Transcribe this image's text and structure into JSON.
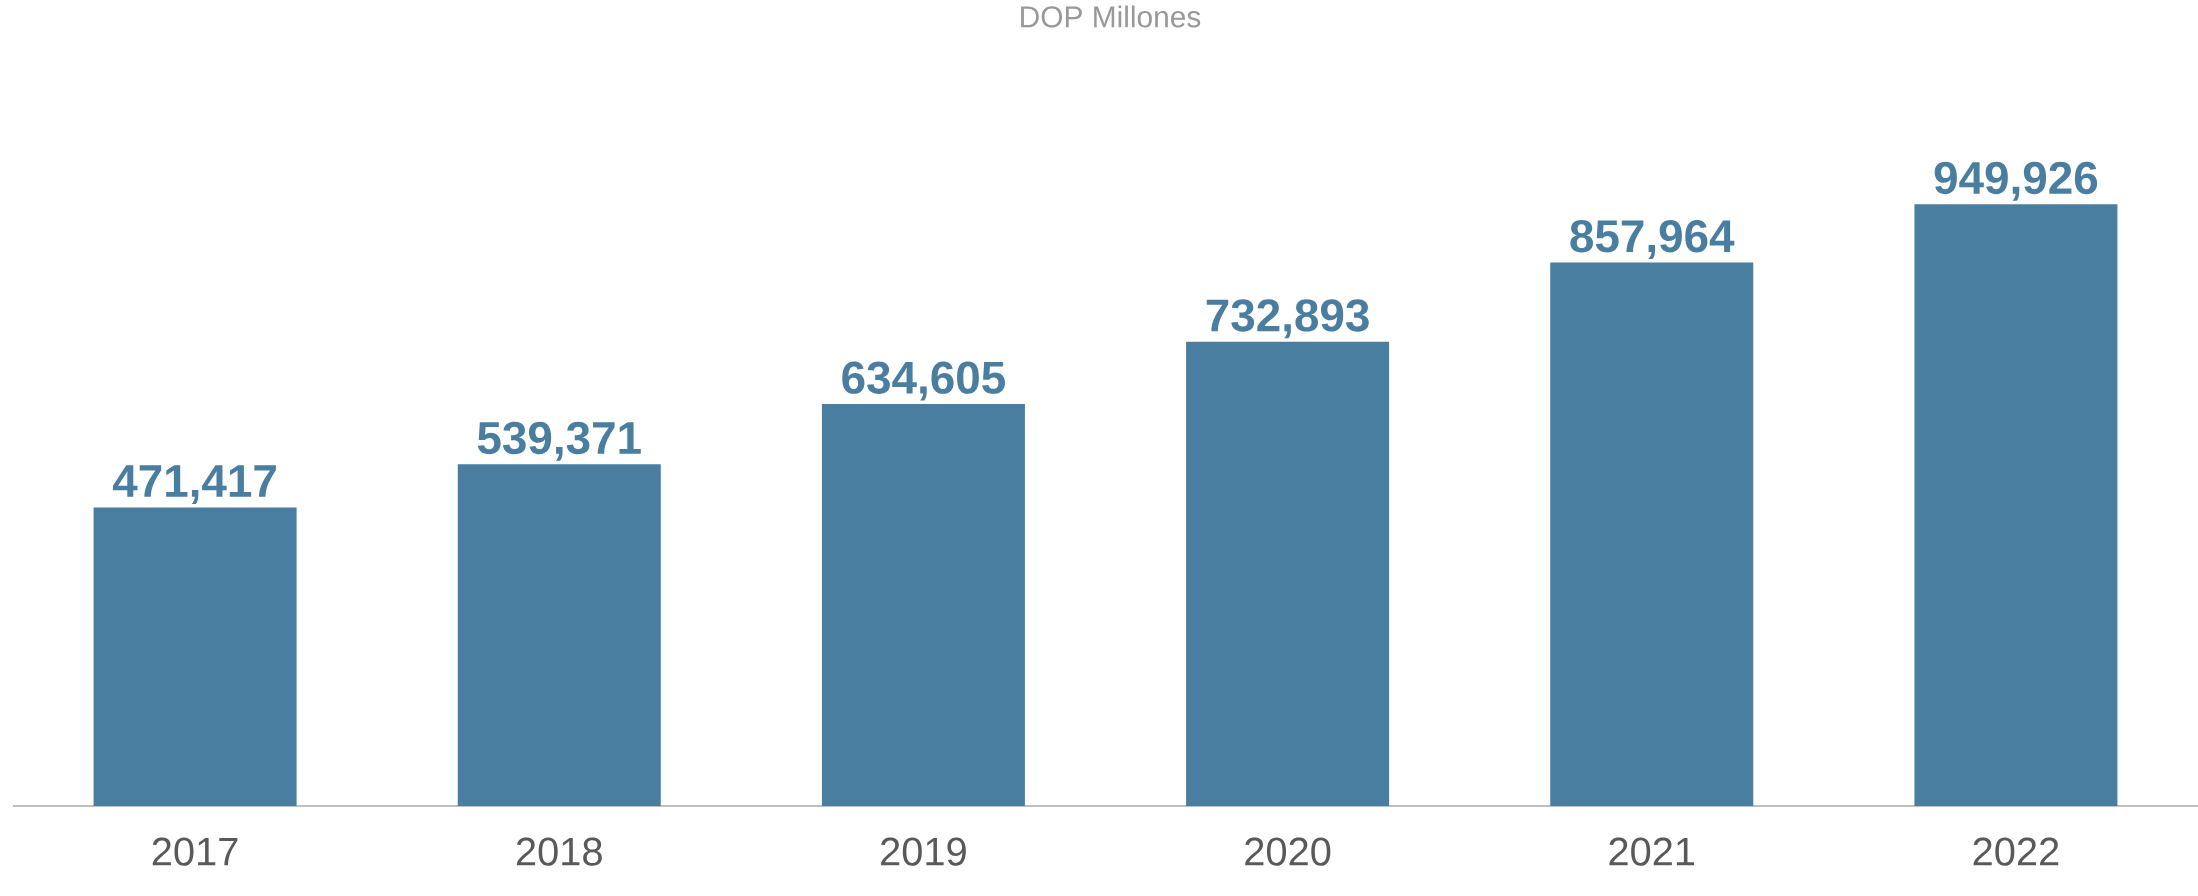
{
  "chart_data": {
    "type": "bar",
    "title": "DOP Millones",
    "categories": [
      "2017",
      "2018",
      "2019",
      "2020",
      "2021",
      "2022"
    ],
    "values": [
      471417,
      539371,
      634605,
      732893,
      857964,
      949926
    ],
    "value_labels": [
      "471,417",
      "539,371",
      "634,605",
      "732,893",
      "857,964",
      "949,926"
    ],
    "color": "#4a7ea1"
  }
}
